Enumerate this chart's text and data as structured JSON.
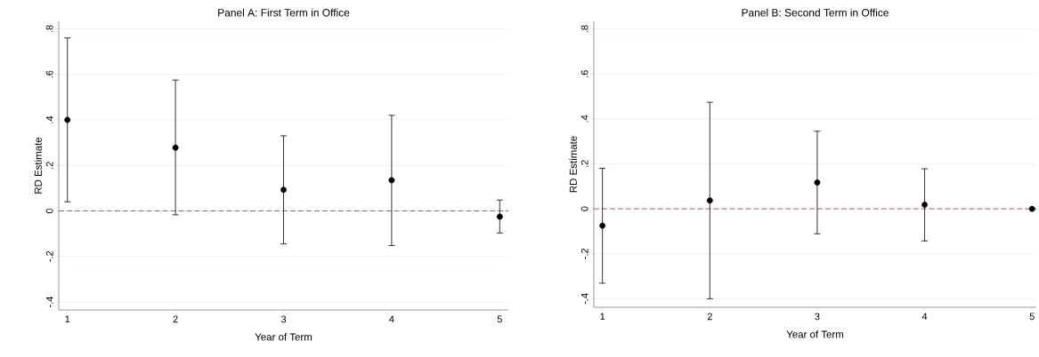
{
  "chart_data": [
    {
      "type": "scatter",
      "title": "Panel A: First Term in Office",
      "xlabel": "Year of Term",
      "ylabel": "RD Estimate",
      "x": [
        1,
        2,
        3,
        4,
        5
      ],
      "series": [
        {
          "color": "#000000",
          "values": [
            0.4,
            0.278,
            0.093,
            0.135,
            -0.025
          ],
          "errors": [
            [
              0.04,
              0.76
            ],
            [
              -0.017,
              0.575
            ],
            [
              -0.145,
              0.33
            ],
            [
              -0.152,
              0.42
            ],
            [
              -0.097,
              0.048
            ]
          ]
        }
      ],
      "xlim": [
        0.92,
        5.08
      ],
      "ylim": [
        -0.435,
        0.833
      ],
      "xticks": [
        1,
        2,
        3,
        4,
        5
      ],
      "yticks": [
        {
          "value": -0.4,
          "label": "-.4"
        },
        {
          "value": -0.2,
          "label": "-.2"
        },
        0,
        {
          "value": 0.2,
          "label": ".2"
        },
        {
          "value": 0.4,
          "label": ".4"
        },
        {
          "value": 0.6,
          "label": ".6"
        },
        {
          "value": 0.8,
          "label": ".8"
        }
      ],
      "ref_lines": [
        {
          "axis": "y",
          "value": 0,
          "color": "#c8385e",
          "line_style": "dashed"
        }
      ],
      "grid": "y",
      "marker": "circle"
    },
    {
      "type": "scatter",
      "title": "Panel B: Second Term in Office",
      "xlabel": "Year of Term",
      "ylabel": "RD Estimate",
      "x": [
        1,
        2,
        3,
        4,
        5
      ],
      "series": [
        {
          "color": "#000000",
          "values": [
            -0.075,
            0.037,
            0.117,
            0.018,
            0.0
          ],
          "errors": [
            [
              -0.331,
              0.18
            ],
            [
              -0.4,
              0.474
            ],
            [
              -0.111,
              0.345
            ],
            [
              -0.143,
              0.178
            ],
            null
          ]
        }
      ],
      "xlim": [
        0.92,
        5.04
      ],
      "ylim": [
        -0.438,
        0.834
      ],
      "xticks": [
        1,
        2,
        3,
        4,
        5
      ],
      "yticks": [
        {
          "value": -0.4,
          "label": "-.4"
        },
        {
          "value": -0.2,
          "label": "-.2"
        },
        0,
        {
          "value": 0.2,
          "label": ".2"
        },
        {
          "value": 0.4,
          "label": ".4"
        },
        {
          "value": 0.6,
          "label": ".6"
        },
        {
          "value": 0.8,
          "label": ".8"
        }
      ],
      "ref_lines": [
        {
          "axis": "y",
          "value": 0,
          "color": "#c8385e",
          "line_style": "dashed"
        }
      ],
      "grid": "y",
      "marker": "circle"
    }
  ]
}
